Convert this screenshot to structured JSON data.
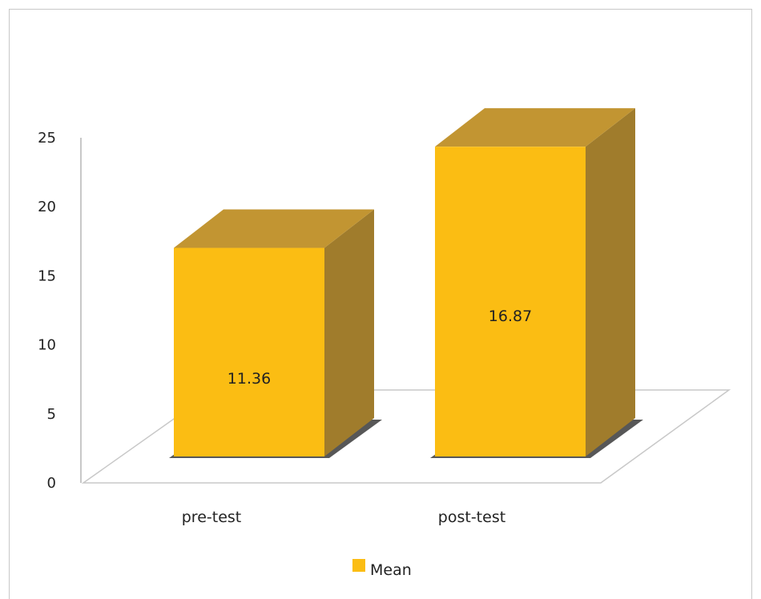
{
  "chart_data": {
    "type": "bar",
    "categories": [
      "pre-test",
      "post-test"
    ],
    "series": [
      {
        "name": "Mean",
        "values": [
          11.36,
          16.87
        ],
        "data_labels": [
          "11.36",
          "16.87"
        ],
        "color": "#fbbd13",
        "top_color": "#c29532",
        "side_color": "#a07c2c"
      }
    ],
    "ylim": [
      0,
      25
    ],
    "yticks": [
      "0",
      "5",
      "10",
      "15",
      "20",
      "25"
    ],
    "title": "",
    "xlabel": "",
    "ylabel": "",
    "grid": false,
    "legend_position": "bottom",
    "style": "3d-column"
  }
}
